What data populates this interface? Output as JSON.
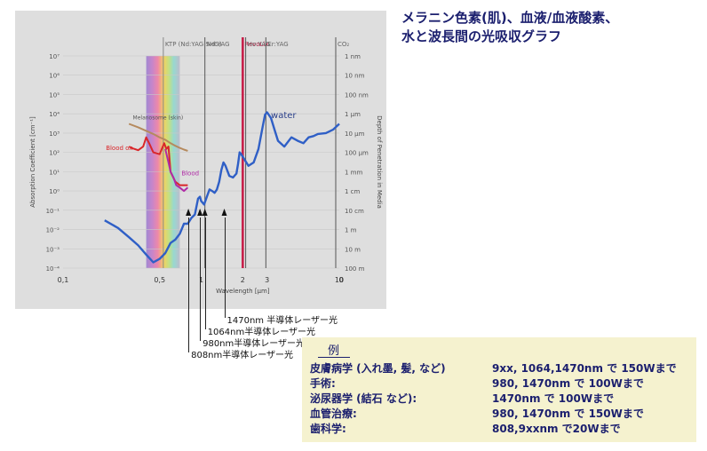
{
  "title": {
    "line1": "メラニン色素(肌)、血液/血液酸素、",
    "line2": "水と波長間の光吸収グラフ"
  },
  "chart_data": {
    "type": "line",
    "title": "",
    "xlabel": "Wavelength [µm]",
    "ylabel": "Absorption Coefficient [cm⁻¹]",
    "y2label": "Depth of Penetration in Media",
    "x_scale": "log",
    "y_scale": "log",
    "xlim": [
      0.1,
      10
    ],
    "ylim": [
      0.0001,
      10000000
    ],
    "x_ticks": [
      {
        "value": 0.1,
        "label": "0,1"
      },
      {
        "value": 0.5,
        "label": "0,5"
      },
      {
        "value": 1,
        "label": "1"
      },
      {
        "value": 2,
        "label": "2"
      },
      {
        "value": 3,
        "label": "3"
      },
      {
        "value": 10,
        "label": "10"
      }
    ],
    "x_extra_tick": "0",
    "y_ticks": [
      {
        "value": 10000000,
        "label": "10⁷"
      },
      {
        "value": 1000000,
        "label": "10⁶"
      },
      {
        "value": 100000,
        "label": "10⁵"
      },
      {
        "value": 10000,
        "label": "10⁴"
      },
      {
        "value": 1000,
        "label": "10³"
      },
      {
        "value": 100,
        "label": "10²"
      },
      {
        "value": 10,
        "label": "10¹"
      },
      {
        "value": 1,
        "label": "10⁰"
      },
      {
        "value": 0.1,
        "label": "10⁻¹"
      },
      {
        "value": 0.01,
        "label": "10⁻²"
      },
      {
        "value": 0.001,
        "label": "10⁻³"
      },
      {
        "value": 0.0001,
        "label": "10⁻⁴"
      }
    ],
    "y2_ticks": [
      {
        "value": 10000000,
        "label": "1 nm"
      },
      {
        "value": 1000000,
        "label": "10 nm"
      },
      {
        "value": 100000,
        "label": "100 nm"
      },
      {
        "value": 10000,
        "label": "1 µm"
      },
      {
        "value": 1000,
        "label": "10 µm"
      },
      {
        "value": 100,
        "label": "100 µm"
      },
      {
        "value": 10,
        "label": "1 mm"
      },
      {
        "value": 1,
        "label": "1 cm"
      },
      {
        "value": 0.1,
        "label": "10 cm"
      },
      {
        "value": 0.01,
        "label": "1 m"
      },
      {
        "value": 0.001,
        "label": "10 m"
      },
      {
        "value": 0.0001,
        "label": "100 m"
      }
    ],
    "lasers": [
      {
        "label": "KTP (Nd:YAG SHG)",
        "wavelength": 0.532,
        "color": "#888888"
      },
      {
        "label": "Nd:YAG",
        "wavelength": 1.064,
        "color": "#555555"
      },
      {
        "label": "RevoLix",
        "wavelength": 2.0,
        "color": "#c8204a"
      },
      {
        "label": "Ho:YAG",
        "wavelength": 2.1,
        "color": "#555555"
      },
      {
        "label": "Er:YAG",
        "wavelength": 2.94,
        "color": "#555555"
      },
      {
        "label": "CO₂",
        "wavelength": 10.6,
        "color": "#555555"
      }
    ],
    "series": [
      {
        "name": "water",
        "color": "#2f5fc6",
        "x": [
          0.2,
          0.25,
          0.3,
          0.35,
          0.4,
          0.45,
          0.5,
          0.55,
          0.6,
          0.65,
          0.7,
          0.75,
          0.8,
          0.85,
          0.9,
          0.95,
          0.98,
          1.0,
          1.05,
          1.1,
          1.15,
          1.2,
          1.25,
          1.3,
          1.35,
          1.4,
          1.45,
          1.5,
          1.6,
          1.7,
          1.8,
          1.85,
          1.9,
          1.95,
          2.0,
          2.2,
          2.4,
          2.6,
          2.8,
          2.9,
          3.0,
          3.2,
          3.4,
          3.6,
          4.0,
          4.5,
          5.0,
          5.5,
          6.0,
          6.5,
          7.0,
          8.0,
          9.0,
          10.0
        ],
        "y": [
          0.03,
          0.012,
          0.004,
          0.0015,
          0.0005,
          0.0002,
          0.0003,
          0.0006,
          0.002,
          0.003,
          0.006,
          0.02,
          0.02,
          0.04,
          0.06,
          0.4,
          0.5,
          0.3,
          0.2,
          0.5,
          1.2,
          1.0,
          0.8,
          1.2,
          3,
          12,
          30,
          20,
          6,
          5,
          8,
          25,
          100,
          80,
          60,
          20,
          30,
          150,
          2500,
          9000,
          12000,
          6000,
          1500,
          400,
          200,
          600,
          400,
          300,
          600,
          700,
          900,
          1000,
          1500,
          3000
        ]
      },
      {
        "name": "Melanosome (skin)",
        "color": "#b58a5e",
        "x": [
          0.3,
          0.35,
          0.4,
          0.45,
          0.5,
          0.55,
          0.6,
          0.65,
          0.7,
          0.75,
          0.8
        ],
        "y": [
          3000,
          2000,
          1300,
          900,
          600,
          450,
          300,
          220,
          170,
          140,
          120
        ]
      },
      {
        "name": "Blood ox",
        "color": "#d9262a",
        "x": [
          0.3,
          0.32,
          0.35,
          0.38,
          0.4,
          0.42,
          0.45,
          0.5,
          0.54,
          0.56,
          0.58,
          0.6,
          0.65,
          0.7,
          0.75,
          0.8
        ],
        "y": [
          200,
          160,
          130,
          200,
          600,
          300,
          100,
          80,
          300,
          150,
          200,
          10,
          3,
          2,
          2,
          2
        ]
      },
      {
        "name": "Blood",
        "color": "#b02aa6",
        "x": [
          0.55,
          0.58,
          0.6,
          0.63,
          0.66,
          0.7,
          0.75,
          0.8
        ],
        "y": [
          150,
          30,
          10,
          5,
          2,
          1.5,
          1,
          1.5
        ]
      }
    ],
    "annotations": [
      {
        "text": "1470nm 半導体レーザー光",
        "wavelength": 1.47
      },
      {
        "text": "1064nm半導体レーザー光",
        "wavelength": 1.064
      },
      {
        "text": "980nm半導体レーザー光",
        "wavelength": 0.98
      },
      {
        "text": "808nm半導体レーザー光",
        "wavelength": 0.808
      }
    ]
  },
  "example": {
    "heading": "例",
    "rows": [
      {
        "label": "皮膚病学 (入れ墨, 髪, など)",
        "value": "9xx, 1064,1470nm で 150Wまで"
      },
      {
        "label": "手術:",
        "value": "980, 1470nm で 100Wまで"
      },
      {
        "label": "泌尿器学 (結石 など):",
        "value": "1470nm で 100Wまで"
      },
      {
        "label": "血管治療:",
        "value": "980, 1470nm で 150Wまで"
      },
      {
        "label": "歯科学:",
        "value": "808,9xxnm で20Wまで"
      }
    ]
  }
}
